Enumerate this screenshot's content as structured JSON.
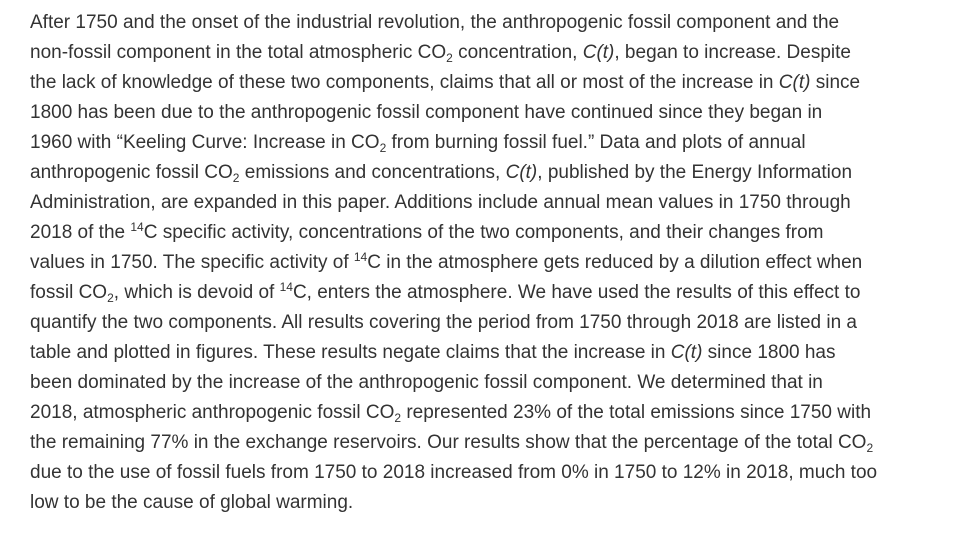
{
  "abstract": {
    "lines": [
      [
        [
          "t",
          "After 1750 and the onset of the industrial revolution, the anthropogenic fossil component and the"
        ]
      ],
      [
        [
          "t",
          "non-fossil component in the total atmospheric CO"
        ],
        [
          "sub",
          "2"
        ],
        [
          "t",
          " concentration, "
        ],
        [
          "i",
          "C(t)"
        ],
        [
          "t",
          ", began to increase. Despite"
        ]
      ],
      [
        [
          "t",
          "the lack of knowledge of these two components, claims that all or most of the increase in "
        ],
        [
          "i",
          "C(t)"
        ],
        [
          "t",
          " since"
        ]
      ],
      [
        [
          "t",
          "1800 has been due to the anthropogenic fossil component have continued since they began in"
        ]
      ],
      [
        [
          "t",
          "1960 with “Keeling Curve: Increase in CO"
        ],
        [
          "sub",
          "2"
        ],
        [
          "t",
          " from burning fossil fuel.” Data and plots of annual"
        ]
      ],
      [
        [
          "t",
          "anthropogenic fossil CO"
        ],
        [
          "sub",
          "2"
        ],
        [
          "t",
          " emissions and concentrations, "
        ],
        [
          "i",
          "C(t)"
        ],
        [
          "t",
          ", published by the Energy Information"
        ]
      ],
      [
        [
          "t",
          "Administration, are expanded in this paper. Additions include annual mean values in 1750 through"
        ]
      ],
      [
        [
          "t",
          "2018 of the "
        ],
        [
          "sup",
          "14"
        ],
        [
          "t",
          "C specific activity, concentrations of the two components, and their changes from"
        ]
      ],
      [
        [
          "t",
          "values in 1750. The specific activity of "
        ],
        [
          "sup",
          "14"
        ],
        [
          "t",
          "C in the atmosphere gets reduced by a dilution effect when"
        ]
      ],
      [
        [
          "t",
          "fossil CO"
        ],
        [
          "sub",
          "2"
        ],
        [
          "t",
          ", which is devoid of "
        ],
        [
          "sup",
          "14"
        ],
        [
          "t",
          "C, enters the atmosphere. We have used the results of this effect to"
        ]
      ],
      [
        [
          "t",
          "quantify the two components. All results covering the period from 1750 through 2018 are listed in a"
        ]
      ],
      [
        [
          "t",
          "table and plotted in figures. These results negate claims that the increase in "
        ],
        [
          "i",
          "C(t)"
        ],
        [
          "t",
          " since 1800 has"
        ]
      ],
      [
        [
          "t",
          "been dominated by the increase of the anthropogenic fossil component. We determined that in"
        ]
      ],
      [
        [
          "t",
          "2018, atmospheric anthropogenic fossil CO"
        ],
        [
          "sub",
          "2"
        ],
        [
          "t",
          " represented 23% of the total emissions since 1750 with"
        ]
      ],
      [
        [
          "t",
          "the remaining 77% in the exchange reservoirs. Our results show that the percentage of the total CO"
        ],
        [
          "sub",
          "2"
        ]
      ],
      [
        [
          "t",
          "due to the use of fossil fuels from 1750 to 2018 increased from 0% in 1750 to 12% in 2018, much too"
        ]
      ],
      [
        [
          "t",
          "low to be the cause of global warming."
        ]
      ]
    ]
  }
}
